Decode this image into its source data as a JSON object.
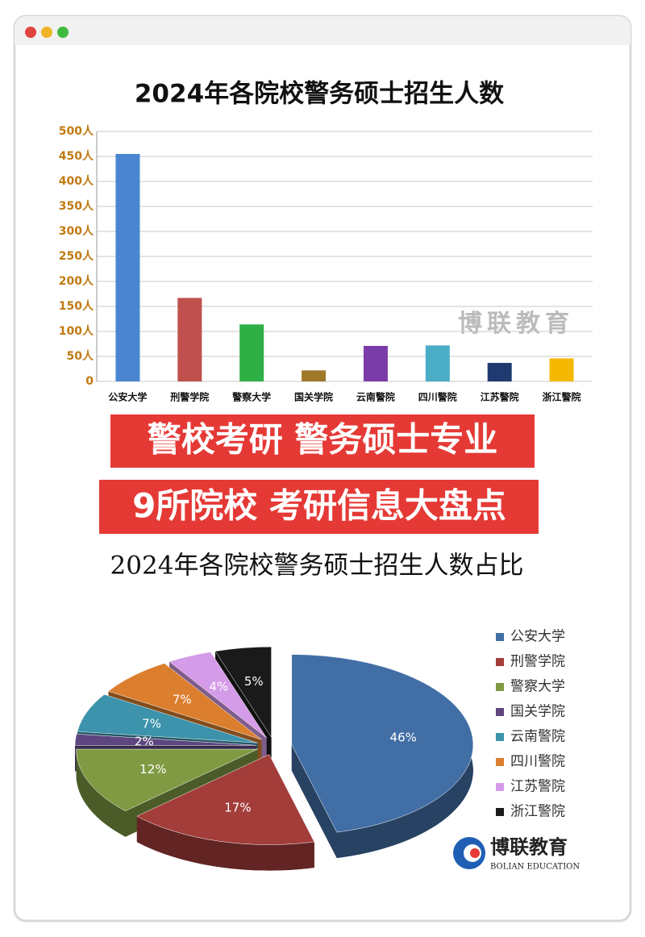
{
  "chart_data": [
    {
      "type": "bar",
      "title": "2024年各院校警务硕士招生人数",
      "categories": [
        "公安大学",
        "刑警学院",
        "警察大学",
        "国关学院",
        "云南警院",
        "四川警院",
        "江苏警院",
        "浙江警院"
      ],
      "values": [
        455,
        167,
        114,
        22,
        71,
        72,
        37,
        46
      ],
      "colors": [
        "#4a86d0",
        "#c0504d",
        "#2fb046",
        "#a0782a",
        "#7a3ca8",
        "#4bacc6",
        "#1f3a6e",
        "#f5b800"
      ],
      "ylim": [
        0,
        500
      ],
      "yticks": [
        0,
        {
          "value": 50,
          "label": "50人"
        },
        {
          "value": 100,
          "label": "100人"
        },
        {
          "value": 150,
          "label": "150人"
        },
        {
          "value": 200,
          "label": "200人"
        },
        {
          "value": 250,
          "label": "250人"
        },
        {
          "value": 300,
          "label": "300人"
        },
        {
          "value": 350,
          "label": "350人"
        },
        {
          "value": 400,
          "label": "400人"
        },
        {
          "value": 450,
          "label": "450人"
        },
        {
          "value": 500,
          "label": "500人"
        }
      ],
      "grid": true
    },
    {
      "type": "pie",
      "title": "2024年各院校警务硕士招生人数占比",
      "categories": [
        "公安大学",
        "刑警学院",
        "警察大学",
        "国关学院",
        "云南警院",
        "四川警院",
        "江苏警院",
        "浙江警院"
      ],
      "values": [
        46,
        17,
        12,
        2,
        7,
        7,
        4,
        5
      ],
      "value_labels": [
        "46%",
        "17%",
        "12%",
        "2%",
        "7%",
        "7%",
        "4%",
        "5%"
      ],
      "colors": [
        "#416ea5",
        "#a33d3a",
        "#7f9a42",
        "#5e4680",
        "#3c93ab",
        "#db7f2e",
        "#d49be8",
        "#1a1a1a"
      ],
      "legend": "right"
    }
  ],
  "banners": [
    "警校考研 警务硕士专业",
    "9所院校 考研信息大盘点"
  ],
  "watermark": "博联教育",
  "logo": {
    "name": "博联教育",
    "subtitle": "BOLIAN EDUCATION"
  }
}
